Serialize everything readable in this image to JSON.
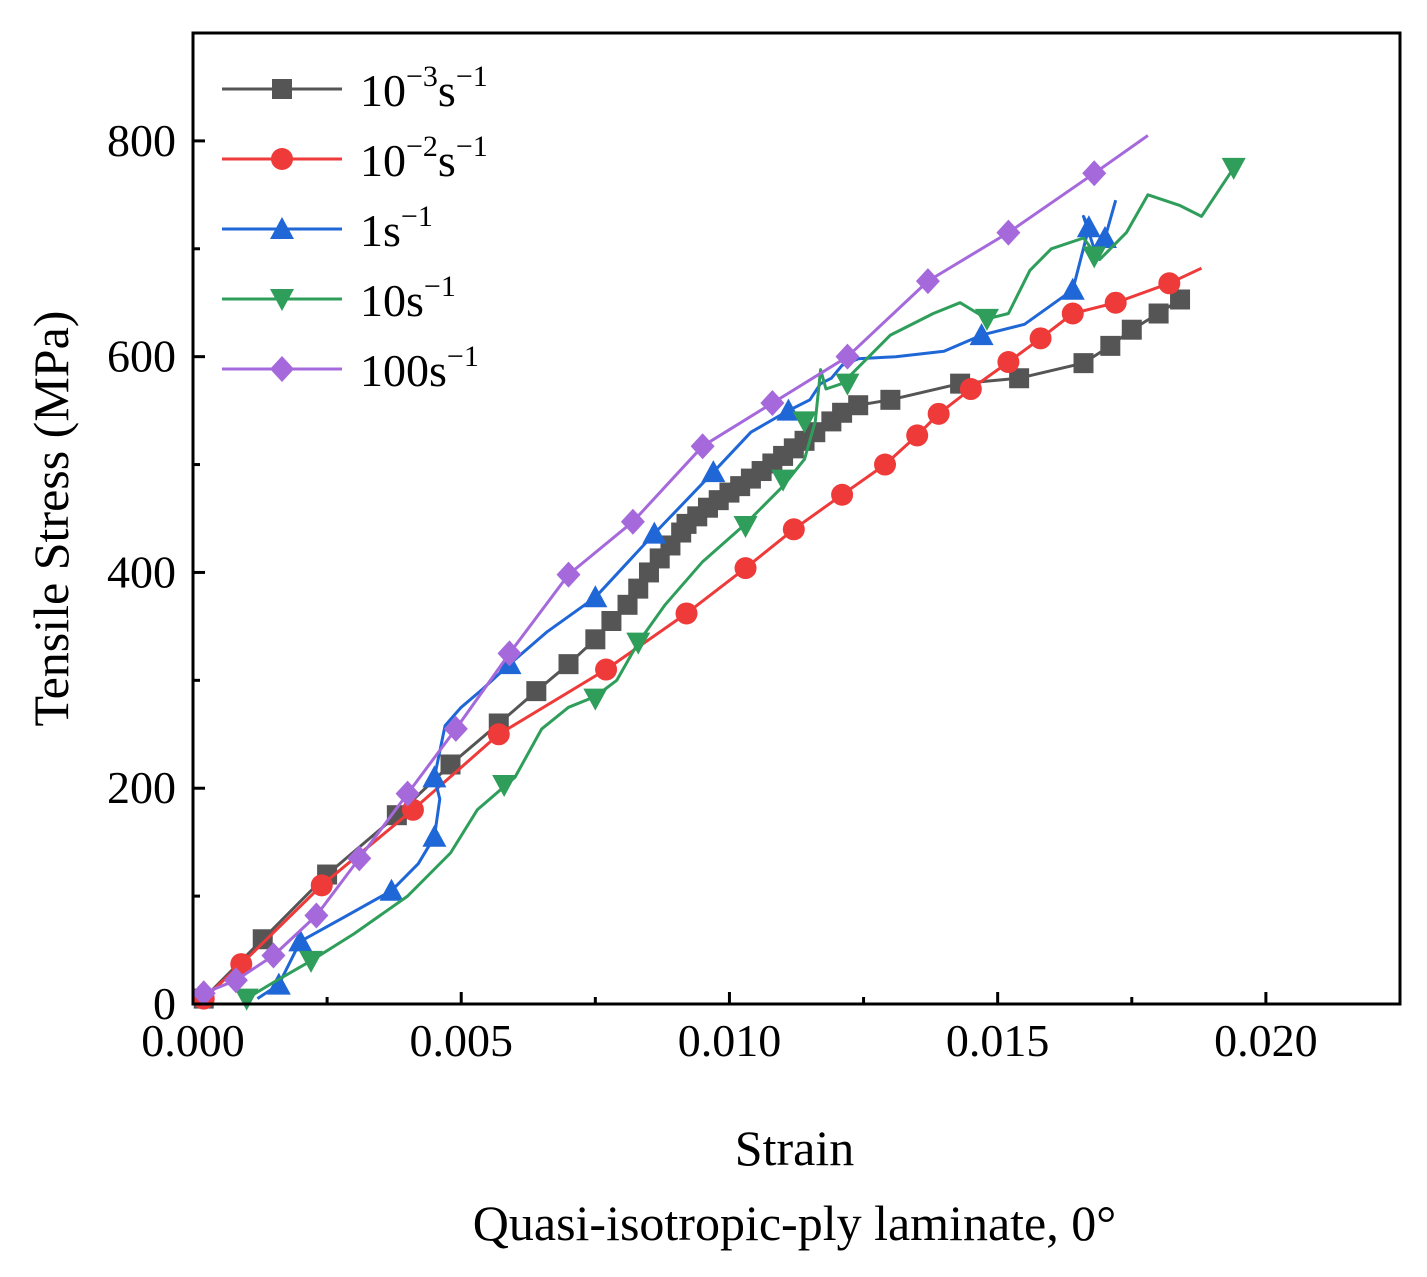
{
  "chart_data": {
    "type": "line",
    "title": "",
    "subtitle": "Quasi-isotropic-ply laminate, 0°",
    "xlabel": "Strain",
    "ylabel": "Tensile Stress (MPa)",
    "xlim": [
      0,
      0.0225
    ],
    "ylim": [
      0,
      900
    ],
    "xticks": [
      0.0,
      0.005,
      0.01,
      0.015,
      0.02
    ],
    "xtick_labels": [
      "0.000",
      "0.005",
      "0.010",
      "0.015",
      "0.020"
    ],
    "yticks": [
      0,
      200,
      400,
      600,
      800
    ],
    "ytick_labels": [
      "0",
      "200",
      "400",
      "600",
      "800"
    ],
    "grid": false,
    "legend_position": "top-left",
    "series": [
      {
        "name": "10^-3 s^-1",
        "label_base": "10",
        "label_exp": "−3",
        "label_unit": "s",
        "label_unit_exp": "−1",
        "color": "#555555",
        "marker": "square",
        "x": [
          0.0002,
          0.0013,
          0.0025,
          0.0038,
          0.0048,
          0.0057,
          0.0064,
          0.007,
          0.0075,
          0.0078,
          0.0081,
          0.0083,
          0.0085,
          0.0087,
          0.0089,
          0.0091,
          0.0092,
          0.0094,
          0.0096,
          0.0098,
          0.01,
          0.0102,
          0.0104,
          0.0106,
          0.0108,
          0.011,
          0.0112,
          0.0114,
          0.0116,
          0.0119,
          0.0121,
          0.0124,
          0.013,
          0.0143,
          0.0154,
          0.0166,
          0.0171,
          0.0175,
          0.018,
          0.0184
        ],
        "y": [
          5,
          60,
          120,
          175,
          222,
          260,
          290,
          315,
          338,
          355,
          370,
          385,
          400,
          413,
          425,
          437,
          445,
          452,
          460,
          467,
          474,
          480,
          487,
          494,
          501,
          508,
          515,
          522,
          530,
          540,
          548,
          555,
          560,
          575,
          580,
          594,
          610,
          625,
          640,
          653
        ],
        "marker_x": [
          0.0002,
          0.0013,
          0.0025,
          0.0038,
          0.0048,
          0.0057,
          0.0064,
          0.007,
          0.0075,
          0.0078,
          0.0081,
          0.0083,
          0.0085,
          0.0087,
          0.0089,
          0.0091,
          0.0092,
          0.0094,
          0.0096,
          0.0098,
          0.01,
          0.0102,
          0.0104,
          0.0106,
          0.0108,
          0.011,
          0.0112,
          0.0114,
          0.0116,
          0.0119,
          0.0121,
          0.0124,
          0.013,
          0.0143,
          0.0154,
          0.0166,
          0.0171,
          0.0175,
          0.018,
          0.0184
        ],
        "marker_y": [
          5,
          60,
          120,
          175,
          222,
          260,
          290,
          315,
          338,
          355,
          370,
          385,
          400,
          413,
          425,
          437,
          445,
          452,
          460,
          467,
          474,
          480,
          487,
          494,
          501,
          508,
          515,
          522,
          530,
          540,
          548,
          555,
          560,
          575,
          580,
          594,
          610,
          625,
          640,
          653
        ]
      },
      {
        "name": "10^-2 s^-1",
        "label_base": "10",
        "label_exp": "−2",
        "label_unit": "s",
        "label_unit_exp": "−1",
        "color": "#ef3a3a",
        "marker": "circle",
        "x": [
          0.0002,
          0.0009,
          0.0024,
          0.0041,
          0.0057,
          0.0077,
          0.0092,
          0.0103,
          0.0112,
          0.0121,
          0.0129,
          0.0135,
          0.0139,
          0.0145,
          0.0152,
          0.0158,
          0.0164,
          0.0172,
          0.0182,
          0.0188
        ],
        "y": [
          5,
          37,
          110,
          180,
          250,
          310,
          362,
          404,
          440,
          472,
          500,
          527,
          547,
          570,
          595,
          617,
          640,
          650,
          668,
          682
        ],
        "marker_x": [
          0.0002,
          0.0009,
          0.0024,
          0.0041,
          0.0057,
          0.0077,
          0.0092,
          0.0103,
          0.0112,
          0.0121,
          0.0129,
          0.0135,
          0.0139,
          0.0145,
          0.0152,
          0.0158,
          0.0164,
          0.0172,
          0.0182
        ],
        "marker_y": [
          5,
          37,
          110,
          180,
          250,
          310,
          362,
          404,
          440,
          472,
          500,
          527,
          547,
          570,
          595,
          617,
          640,
          650,
          668
        ]
      },
      {
        "name": "1 s^-1",
        "label_base": "1",
        "label_exp": "",
        "label_unit": "s",
        "label_unit_exp": "−1",
        "color": "#1f66d6",
        "marker": "triangle-up",
        "x": [
          0.0012,
          0.0016,
          0.002,
          0.0028,
          0.0037,
          0.0042,
          0.0045,
          0.0046,
          0.0045,
          0.0047,
          0.005,
          0.0054,
          0.0059,
          0.0066,
          0.0075,
          0.0086,
          0.0097,
          0.0104,
          0.0111,
          0.0115,
          0.0117,
          0.0119,
          0.0121,
          0.0124,
          0.0131,
          0.014,
          0.0147,
          0.0155,
          0.0164,
          0.0167,
          0.0166,
          0.0168,
          0.017,
          0.0172
        ],
        "y": [
          5,
          18,
          58,
          80,
          105,
          130,
          155,
          190,
          210,
          258,
          275,
          292,
          315,
          345,
          377,
          436,
          493,
          530,
          550,
          560,
          575,
          580,
          592,
          598,
          600,
          605,
          620,
          630,
          662,
          720,
          730,
          700,
          710,
          745
        ],
        "marker_x": [
          0.0016,
          0.002,
          0.0037,
          0.0045,
          0.0045,
          0.0059,
          0.0075,
          0.0086,
          0.0097,
          0.0111,
          0.0147,
          0.0164,
          0.0167,
          0.017
        ],
        "marker_y": [
          18,
          58,
          105,
          155,
          210,
          315,
          377,
          436,
          493,
          550,
          620,
          662,
          720,
          710
        ]
      },
      {
        "name": "10 s^-1",
        "label_base": "10",
        "label_exp": "",
        "label_unit": "s",
        "label_unit_exp": "−1",
        "color": "#2e9e5a",
        "marker": "triangle-down",
        "x": [
          0.001,
          0.0015,
          0.0022,
          0.003,
          0.004,
          0.0048,
          0.0053,
          0.006,
          0.0065,
          0.007,
          0.0075,
          0.0079,
          0.0083,
          0.0088,
          0.0095,
          0.0103,
          0.011,
          0.0114,
          0.0116,
          0.0117,
          0.0118,
          0.0121,
          0.0126,
          0.013,
          0.0138,
          0.0143,
          0.0148,
          0.0152,
          0.0156,
          0.016,
          0.0166,
          0.0169,
          0.0174,
          0.0178,
          0.0184,
          0.0188,
          0.0194
        ],
        "y": [
          5,
          20,
          40,
          65,
          100,
          140,
          180,
          210,
          255,
          275,
          285,
          300,
          335,
          370,
          410,
          445,
          480,
          505,
          540,
          588,
          570,
          575,
          600,
          620,
          640,
          650,
          635,
          640,
          680,
          700,
          710,
          690,
          715,
          750,
          740,
          730,
          775
        ],
        "marker_x": [
          0.001,
          0.0022,
          0.0058,
          0.0075,
          0.0083,
          0.0103,
          0.011,
          0.0114,
          0.0122,
          0.0148,
          0.0168,
          0.0194
        ],
        "marker_y": [
          5,
          40,
          203,
          283,
          335,
          443,
          486,
          540,
          575,
          635,
          693,
          775
        ]
      },
      {
        "name": "100 s^-1",
        "label_base": "100",
        "label_exp": "",
        "label_unit": "s",
        "label_unit_exp": "−1",
        "color": "#a569dc",
        "marker": "diamond",
        "x": [
          0.0002,
          0.0008,
          0.0015,
          0.0023,
          0.0031,
          0.004,
          0.0049,
          0.0059,
          0.007,
          0.0082,
          0.0095,
          0.0108,
          0.0122,
          0.0137,
          0.0152,
          0.0168,
          0.0178
        ],
        "y": [
          10,
          22,
          45,
          82,
          135,
          195,
          255,
          325,
          398,
          447,
          517,
          557,
          600,
          670,
          715,
          770,
          805
        ],
        "marker_x": [
          0.0002,
          0.0008,
          0.0015,
          0.0023,
          0.0031,
          0.004,
          0.0049,
          0.0059,
          0.007,
          0.0082,
          0.0095,
          0.0108,
          0.0122,
          0.0137,
          0.0152,
          0.0168
        ],
        "marker_y": [
          10,
          22,
          45,
          82,
          135,
          195,
          255,
          325,
          398,
          447,
          517,
          557,
          600,
          670,
          715,
          770
        ]
      }
    ]
  }
}
